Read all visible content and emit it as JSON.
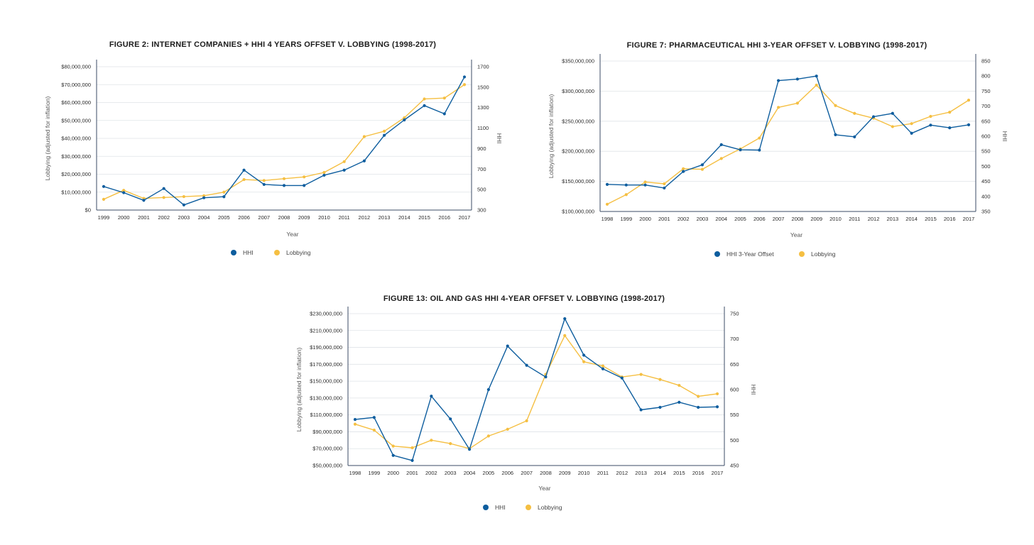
{
  "colors": {
    "hhi": "#0d5d9e",
    "lobbying": "#f5bf42"
  },
  "chart_data": [
    {
      "type": "line",
      "title": "FIGURE 2: INTERNET COMPANIES + HHI 4 YEARS OFFSET V. LOBBYING (1998-2017)",
      "xlabel": "Year",
      "ylabel": "Lobbying (adjusted for inflation)",
      "y2label": "HHI",
      "categories": [
        "1999",
        "2000",
        "2001",
        "2002",
        "2003",
        "2004",
        "2005",
        "2006",
        "2007",
        "2008",
        "2009",
        "2010",
        "2011",
        "2012",
        "2013",
        "2014",
        "2015",
        "2016",
        "2017"
      ],
      "y_ticks": [
        "$0",
        "$10,000,000",
        "$20,000,000",
        "$30,000,000",
        "$40,000,000",
        "$50,000,000",
        "$60,000,000",
        "$70,000,000",
        "$80,000,000"
      ],
      "y_tick_values": [
        0,
        10000000,
        20000000,
        30000000,
        40000000,
        50000000,
        60000000,
        70000000,
        80000000
      ],
      "ylim": [
        0,
        80000000
      ],
      "y2_ticks": [
        "300",
        "500",
        "700",
        "900",
        "1100",
        "1300",
        "1500",
        "1700"
      ],
      "y2_tick_values": [
        300,
        500,
        700,
        900,
        1100,
        1300,
        1500,
        1700
      ],
      "y2lim": [
        300,
        1700
      ],
      "series": [
        {
          "name": "HHI",
          "axis": "right",
          "color_key": "hhi",
          "values": [
            530,
            470,
            395,
            510,
            350,
            420,
            430,
            690,
            550,
            540,
            540,
            640,
            690,
            780,
            1030,
            1180,
            1320,
            1240,
            1600
          ]
        },
        {
          "name": "Lobbying",
          "axis": "left",
          "color_key": "lobbying",
          "values": [
            6000000,
            11000000,
            6500000,
            7000000,
            7500000,
            8000000,
            10000000,
            17000000,
            16500000,
            17500000,
            18500000,
            21000000,
            27000000,
            41000000,
            44000000,
            51500000,
            62000000,
            62500000,
            70000000
          ]
        }
      ],
      "legend": [
        "HHI",
        "Lobbying"
      ],
      "legend_position": "bottom"
    },
    {
      "type": "line",
      "title": "FIGURE 7: PHARMACEUTICAL HHI 3-YEAR OFFSET V. LOBBYING (1998-2017)",
      "xlabel": "Year",
      "ylabel": "Lobbying (adjusted for inflation)",
      "y2label": "HHI",
      "categories": [
        "1998",
        "1999",
        "2000",
        "2001",
        "2002",
        "2003",
        "2004",
        "2005",
        "2006",
        "2007",
        "2008",
        "2009",
        "2010",
        "2011",
        "2012",
        "2013",
        "2014",
        "2015",
        "2016",
        "2017"
      ],
      "y_ticks": [
        "$100,000,000",
        "$150,000,000",
        "$200,000,000",
        "$250,000,000",
        "$300,000,000",
        "$350,000,000"
      ],
      "y_tick_values": [
        100000000,
        150000000,
        200000000,
        250000000,
        300000000,
        350000000
      ],
      "ylim": [
        100000000,
        350000000
      ],
      "y2_ticks": [
        "350",
        "400",
        "450",
        "500",
        "550",
        "600",
        "650",
        "700",
        "750",
        "800",
        "850"
      ],
      "y2_tick_values": [
        350,
        400,
        450,
        500,
        550,
        600,
        650,
        700,
        750,
        800,
        850
      ],
      "y2lim": [
        350,
        850
      ],
      "series": [
        {
          "name": "HHI 3-Year Offset",
          "axis": "right",
          "color_key": "hhi",
          "values": [
            440,
            438,
            438,
            428,
            483,
            505,
            572,
            555,
            554,
            785,
            790,
            800,
            605,
            598,
            665,
            676,
            610,
            637,
            628,
            638
          ]
        },
        {
          "name": "Lobbying",
          "axis": "left",
          "color_key": "lobbying",
          "values": [
            112000000,
            128000000,
            149000000,
            146000000,
            171000000,
            170000000,
            188000000,
            204000000,
            222000000,
            273000000,
            280000000,
            310000000,
            276000000,
            263000000,
            255000000,
            241000000,
            246000000,
            258000000,
            265000000,
            285000000
          ]
        }
      ],
      "legend": [
        "HHI 3-Year Offset",
        "Lobbying"
      ],
      "legend_position": "bottom"
    },
    {
      "type": "line",
      "title": "FIGURE 13: OIL AND GAS HHI 4-YEAR OFFSET V. LOBBYING (1998-2017)",
      "xlabel": "Year",
      "ylabel": "Lobbying (adjusted for inflation)",
      "y2label": "HHI",
      "categories": [
        "1998",
        "1999",
        "2000",
        "2001",
        "2002",
        "2003",
        "2004",
        "2005",
        "2006",
        "2007",
        "2008",
        "2009",
        "2010",
        "2011",
        "2012",
        "2013",
        "2014",
        "2015",
        "2016",
        "2017"
      ],
      "y_ticks": [
        "$50,000,000",
        "$70,000,000",
        "$90,000,000",
        "$110,000,000",
        "$130,000,000",
        "$150,000,000",
        "$170,000,000",
        "$190,000,000",
        "$210,000,000",
        "$230,000,000"
      ],
      "y_tick_values": [
        50000000,
        70000000,
        90000000,
        110000000,
        130000000,
        150000000,
        170000000,
        190000000,
        210000000,
        230000000
      ],
      "ylim": [
        50000000,
        230000000
      ],
      "y2_ticks": [
        "450",
        "500",
        "550",
        "600",
        "650",
        "700",
        "750"
      ],
      "y2_tick_values": [
        450,
        500,
        550,
        600,
        650,
        700,
        750
      ],
      "y2lim": [
        450,
        750
      ],
      "series": [
        {
          "name": "HHI",
          "axis": "right",
          "color_key": "hhi",
          "values": [
            541,
            545,
            470,
            460,
            587,
            542,
            482,
            600,
            686,
            648,
            625,
            740,
            668,
            641,
            623,
            560,
            565,
            575,
            565,
            566
          ]
        },
        {
          "name": "Lobbying",
          "axis": "left",
          "color_key": "lobbying",
          "values": [
            99000000,
            92000000,
            73000000,
            71000000,
            80000000,
            76000000,
            70000000,
            85000000,
            93000000,
            103000000,
            158000000,
            204000000,
            173000000,
            168000000,
            155000000,
            158000000,
            152000000,
            145000000,
            132000000,
            135000000
          ]
        }
      ],
      "legend": [
        "HHI",
        "Lobbying"
      ],
      "legend_position": "bottom"
    }
  ]
}
